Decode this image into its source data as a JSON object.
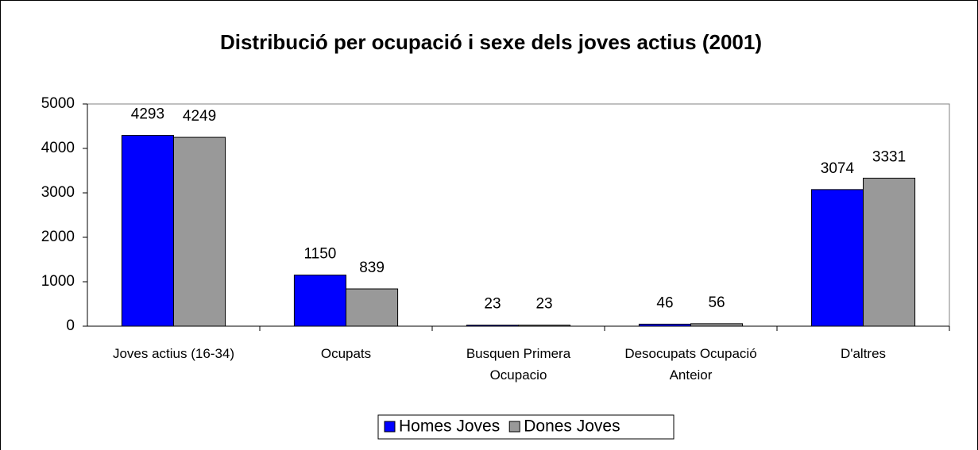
{
  "chart_data": {
    "type": "bar",
    "title": "Distribució per ocupació i sexe dels joves actius (2001)",
    "categories": [
      "Joves actius (16-34)",
      "Ocupats",
      "Busquen Primera Ocupacio",
      "Desocupats Ocupació Anteior",
      "D'altres"
    ],
    "series": [
      {
        "name": "Homes Joves",
        "color": "#0000ff",
        "values": [
          4293,
          1150,
          23,
          46,
          3074
        ]
      },
      {
        "name": "Dones Joves",
        "color": "#999999",
        "values": [
          4249,
          839,
          23,
          56,
          3331
        ]
      }
    ],
    "ylim": [
      0,
      5000
    ],
    "yticks": [
      0,
      1000,
      2000,
      3000,
      4000,
      5000
    ],
    "legend": "bottom"
  }
}
